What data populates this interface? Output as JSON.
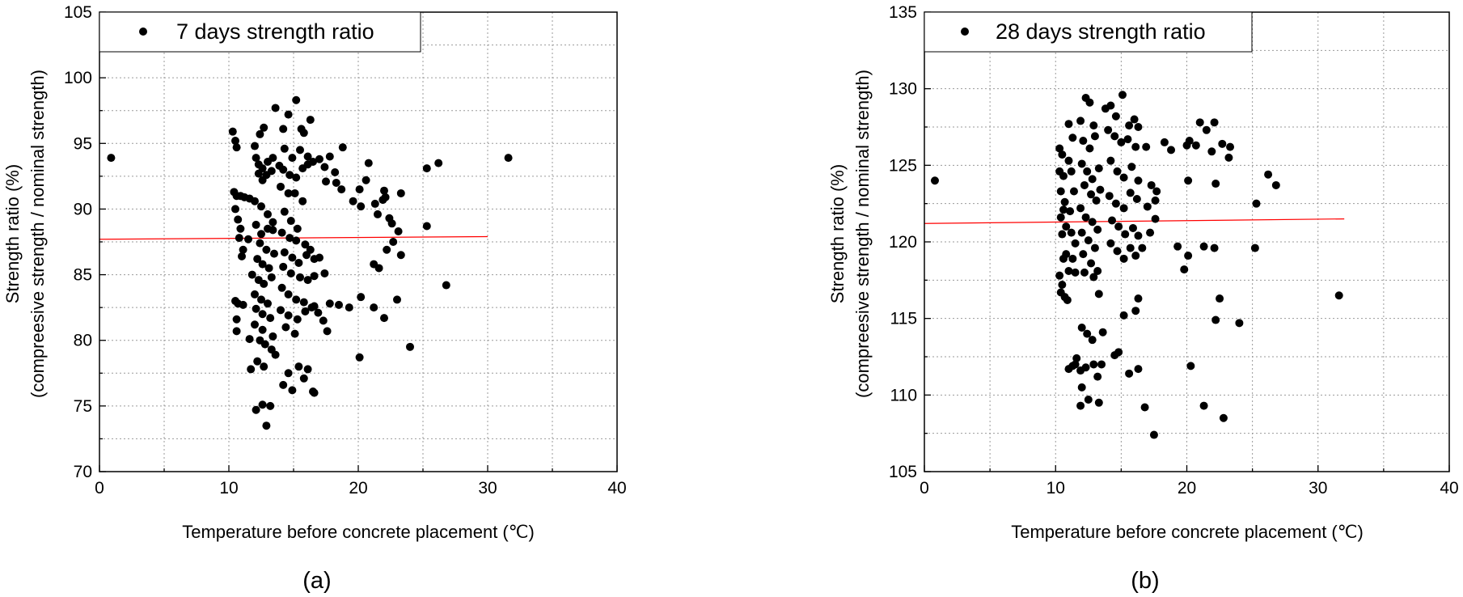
{
  "chart_data": [
    {
      "panel_label": "(a)",
      "type": "scatter",
      "legend": "7 days strength ratio",
      "legend_position": "top-left",
      "xlabel": "Temperature before concrete placement (℃)",
      "ylabel_line1": "Strength ratio (%)",
      "ylabel_line2": "(compreesive strength / nominal strength)",
      "xlim": [
        0,
        40
      ],
      "ylim": [
        70,
        105
      ],
      "xticks": [
        0,
        10,
        20,
        30,
        40
      ],
      "yticks": [
        70,
        75,
        80,
        85,
        90,
        95,
        100,
        105
      ],
      "grid": true,
      "trendline": {
        "color": "#ff0000",
        "x": [
          0,
          30
        ],
        "y": [
          87.7,
          87.9
        ]
      },
      "marker_color": "#000000",
      "points": [
        [
          0.9,
          93.9
        ],
        [
          31.6,
          93.9
        ],
        [
          26.2,
          93.5
        ],
        [
          25.3,
          93.1
        ],
        [
          25.3,
          88.7
        ],
        [
          26.8,
          84.2
        ],
        [
          24.0,
          79.5
        ],
        [
          10.3,
          95.9
        ],
        [
          10.5,
          95.2
        ],
        [
          10.6,
          94.7
        ],
        [
          10.4,
          91.3
        ],
        [
          10.6,
          91.0
        ],
        [
          10.9,
          91.0
        ],
        [
          11.2,
          90.9
        ],
        [
          11.6,
          90.8
        ],
        [
          10.5,
          90.0
        ],
        [
          10.7,
          89.2
        ],
        [
          10.9,
          88.5
        ],
        [
          10.8,
          87.8
        ],
        [
          11.5,
          87.7
        ],
        [
          11.1,
          86.9
        ],
        [
          11.0,
          86.4
        ],
        [
          10.5,
          83.0
        ],
        [
          10.7,
          82.8
        ],
        [
          11.1,
          82.7
        ],
        [
          10.6,
          81.6
        ],
        [
          10.6,
          80.7
        ],
        [
          11.6,
          80.1
        ],
        [
          11.7,
          77.8
        ],
        [
          12.0,
          94.8
        ],
        [
          12.4,
          95.7
        ],
        [
          12.7,
          96.2
        ],
        [
          12.1,
          93.9
        ],
        [
          12.3,
          93.4
        ],
        [
          12.6,
          93.1
        ],
        [
          13.0,
          93.6
        ],
        [
          13.4,
          93.9
        ],
        [
          12.3,
          92.7
        ],
        [
          12.6,
          92.2
        ],
        [
          12.9,
          92.6
        ],
        [
          13.3,
          92.9
        ],
        [
          13.9,
          93.3
        ],
        [
          12.0,
          90.6
        ],
        [
          12.5,
          90.2
        ],
        [
          13.0,
          89.6
        ],
        [
          13.4,
          89.0
        ],
        [
          12.1,
          88.8
        ],
        [
          12.5,
          88.1
        ],
        [
          13.0,
          88.5
        ],
        [
          13.4,
          88.4
        ],
        [
          12.4,
          87.4
        ],
        [
          12.9,
          86.9
        ],
        [
          13.5,
          86.6
        ],
        [
          12.2,
          86.2
        ],
        [
          12.6,
          85.8
        ],
        [
          13.1,
          85.5
        ],
        [
          11.8,
          85.0
        ],
        [
          12.3,
          84.6
        ],
        [
          12.7,
          84.3
        ],
        [
          13.3,
          84.8
        ],
        [
          12.0,
          83.5
        ],
        [
          12.5,
          83.1
        ],
        [
          13.0,
          82.8
        ],
        [
          12.1,
          82.4
        ],
        [
          12.6,
          82.0
        ],
        [
          13.2,
          81.7
        ],
        [
          12.0,
          81.2
        ],
        [
          12.6,
          80.8
        ],
        [
          13.4,
          80.3
        ],
        [
          12.4,
          80.0
        ],
        [
          12.8,
          79.7
        ],
        [
          13.3,
          79.3
        ],
        [
          12.2,
          78.4
        ],
        [
          12.7,
          78.0
        ],
        [
          13.6,
          78.9
        ],
        [
          12.1,
          74.7
        ],
        [
          12.6,
          75.1
        ],
        [
          13.2,
          75.0
        ],
        [
          12.9,
          73.5
        ],
        [
          13.6,
          97.7
        ],
        [
          14.2,
          96.1
        ],
        [
          14.6,
          97.2
        ],
        [
          15.2,
          98.3
        ],
        [
          15.6,
          96.1
        ],
        [
          15.8,
          95.8
        ],
        [
          16.3,
          96.8
        ],
        [
          14.3,
          94.6
        ],
        [
          14.9,
          93.9
        ],
        [
          15.5,
          94.5
        ],
        [
          16.1,
          94.0
        ],
        [
          16.5,
          93.6
        ],
        [
          14.2,
          93.0
        ],
        [
          14.7,
          92.6
        ],
        [
          15.2,
          92.4
        ],
        [
          15.7,
          93.1
        ],
        [
          16.1,
          93.4
        ],
        [
          14.0,
          91.7
        ],
        [
          14.6,
          91.2
        ],
        [
          15.1,
          91.2
        ],
        [
          15.7,
          90.6
        ],
        [
          14.3,
          89.8
        ],
        [
          14.8,
          89.1
        ],
        [
          15.3,
          88.5
        ],
        [
          14.1,
          88.2
        ],
        [
          14.7,
          87.8
        ],
        [
          15.2,
          87.6
        ],
        [
          15.9,
          87.3
        ],
        [
          16.3,
          86.9
        ],
        [
          14.3,
          86.7
        ],
        [
          14.9,
          86.3
        ],
        [
          15.4,
          85.9
        ],
        [
          16.0,
          86.5
        ],
        [
          16.6,
          86.2
        ],
        [
          14.2,
          85.6
        ],
        [
          14.8,
          85.1
        ],
        [
          15.5,
          84.8
        ],
        [
          16.1,
          84.6
        ],
        [
          16.6,
          84.9
        ],
        [
          14.1,
          84.0
        ],
        [
          14.6,
          83.5
        ],
        [
          15.2,
          83.1
        ],
        [
          15.8,
          82.9
        ],
        [
          16.4,
          82.5
        ],
        [
          14.0,
          82.3
        ],
        [
          14.6,
          81.9
        ],
        [
          15.3,
          81.6
        ],
        [
          15.9,
          82.2
        ],
        [
          16.6,
          82.6
        ],
        [
          14.4,
          81.0
        ],
        [
          15.1,
          80.5
        ],
        [
          14.6,
          77.5
        ],
        [
          15.4,
          78.0
        ],
        [
          16.1,
          77.8
        ],
        [
          14.2,
          76.6
        ],
        [
          14.9,
          76.2
        ],
        [
          16.5,
          76.1
        ],
        [
          15.8,
          77.1
        ],
        [
          16.6,
          76.0
        ],
        [
          17.0,
          93.8
        ],
        [
          17.5,
          92.1
        ],
        [
          17.8,
          94.0
        ],
        [
          17.4,
          93.2
        ],
        [
          18.2,
          92.8
        ],
        [
          18.8,
          94.7
        ],
        [
          18.3,
          92.0
        ],
        [
          18.7,
          91.5
        ],
        [
          17.0,
          86.3
        ],
        [
          17.4,
          85.1
        ],
        [
          16.9,
          82.1
        ],
        [
          17.3,
          81.5
        ],
        [
          17.8,
          82.8
        ],
        [
          17.6,
          80.7
        ],
        [
          18.5,
          82.7
        ],
        [
          19.3,
          82.5
        ],
        [
          19.6,
          90.6
        ],
        [
          20.1,
          91.5
        ],
        [
          20.2,
          90.2
        ],
        [
          20.6,
          92.2
        ],
        [
          20.8,
          93.5
        ],
        [
          21.3,
          90.4
        ],
        [
          21.5,
          89.6
        ],
        [
          21.9,
          90.7
        ],
        [
          22.1,
          90.9
        ],
        [
          22.0,
          91.4
        ],
        [
          22.4,
          89.3
        ],
        [
          22.6,
          88.9
        ],
        [
          23.1,
          88.3
        ],
        [
          23.3,
          91.2
        ],
        [
          23.3,
          86.5
        ],
        [
          20.2,
          83.3
        ],
        [
          21.2,
          85.8
        ],
        [
          21.6,
          85.5
        ],
        [
          21.2,
          82.5
        ],
        [
          22.0,
          81.7
        ],
        [
          22.2,
          86.9
        ],
        [
          22.7,
          87.5
        ],
        [
          23.0,
          83.1
        ],
        [
          20.1,
          78.7
        ]
      ]
    },
    {
      "panel_label": "(b)",
      "type": "scatter",
      "legend": "28 days strength ratio",
      "legend_position": "top-left",
      "xlabel": "Temperature before concrete placement (℃)",
      "ylabel_line1": "Strength ratio (%)",
      "ylabel_line2": "(compreesive strength / nominal strength)",
      "xlim": [
        0,
        40
      ],
      "ylim": [
        105,
        135
      ],
      "xticks": [
        0,
        10,
        20,
        30,
        40
      ],
      "yticks": [
        105,
        110,
        115,
        120,
        125,
        130,
        135
      ],
      "grid": true,
      "trendline": {
        "color": "#ff0000",
        "x": [
          0,
          32
        ],
        "y": [
          121.2,
          121.5
        ]
      },
      "marker_color": "#000000",
      "points": [
        [
          0.8,
          124.0
        ],
        [
          31.6,
          116.5
        ],
        [
          26.2,
          124.4
        ],
        [
          26.8,
          123.7
        ],
        [
          25.3,
          122.5
        ],
        [
          25.2,
          119.6
        ],
        [
          24.0,
          114.7
        ],
        [
          10.3,
          126.1
        ],
        [
          10.5,
          125.7
        ],
        [
          10.3,
          124.6
        ],
        [
          10.6,
          124.3
        ],
        [
          10.4,
          123.3
        ],
        [
          10.7,
          122.6
        ],
        [
          10.6,
          122.1
        ],
        [
          10.4,
          121.6
        ],
        [
          10.8,
          121.0
        ],
        [
          10.5,
          120.5
        ],
        [
          10.8,
          119.2
        ],
        [
          10.6,
          118.9
        ],
        [
          10.3,
          117.8
        ],
        [
          10.5,
          117.2
        ],
        [
          10.4,
          116.7
        ],
        [
          10.7,
          116.4
        ],
        [
          10.9,
          116.2
        ],
        [
          11.0,
          127.7
        ],
        [
          11.3,
          126.8
        ],
        [
          11.0,
          125.3
        ],
        [
          11.2,
          124.6
        ],
        [
          11.4,
          123.3
        ],
        [
          11.1,
          122.0
        ],
        [
          11.2,
          120.6
        ],
        [
          11.5,
          119.9
        ],
        [
          11.3,
          118.9
        ],
        [
          11.0,
          118.1
        ],
        [
          11.5,
          118.0
        ],
        [
          11.0,
          111.7
        ],
        [
          11.3,
          111.9
        ],
        [
          11.6,
          112.4
        ],
        [
          11.5,
          112.0
        ],
        [
          11.9,
          127.9
        ],
        [
          12.3,
          129.4
        ],
        [
          12.6,
          129.1
        ],
        [
          12.9,
          127.6
        ],
        [
          12.1,
          126.6
        ],
        [
          12.6,
          126.1
        ],
        [
          13.0,
          126.9
        ],
        [
          12.0,
          125.1
        ],
        [
          12.4,
          124.6
        ],
        [
          12.8,
          124.1
        ],
        [
          13.3,
          124.8
        ],
        [
          12.2,
          123.7
        ],
        [
          12.7,
          123.1
        ],
        [
          13.1,
          122.7
        ],
        [
          13.4,
          123.4
        ],
        [
          11.9,
          122.2
        ],
        [
          12.3,
          121.6
        ],
        [
          12.8,
          121.3
        ],
        [
          13.2,
          120.8
        ],
        [
          12.0,
          120.6
        ],
        [
          12.5,
          120.1
        ],
        [
          13.0,
          119.6
        ],
        [
          12.1,
          119.2
        ],
        [
          12.7,
          118.6
        ],
        [
          13.2,
          118.1
        ],
        [
          12.2,
          118.0
        ],
        [
          12.9,
          117.7
        ],
        [
          13.3,
          116.6
        ],
        [
          12.0,
          114.4
        ],
        [
          12.4,
          114.0
        ],
        [
          12.8,
          113.6
        ],
        [
          11.9,
          111.6
        ],
        [
          12.3,
          111.8
        ],
        [
          12.9,
          112.0
        ],
        [
          13.2,
          111.2
        ],
        [
          12.0,
          110.5
        ],
        [
          11.9,
          109.3
        ],
        [
          12.5,
          109.7
        ],
        [
          13.3,
          109.5
        ],
        [
          13.6,
          114.1
        ],
        [
          13.5,
          112.0
        ],
        [
          13.8,
          128.7
        ],
        [
          14.2,
          128.9
        ],
        [
          14.6,
          128.2
        ],
        [
          15.1,
          129.6
        ],
        [
          15.6,
          127.6
        ],
        [
          16.0,
          128.0
        ],
        [
          16.3,
          127.5
        ],
        [
          14.0,
          127.3
        ],
        [
          14.5,
          126.9
        ],
        [
          15.0,
          126.5
        ],
        [
          15.5,
          126.7
        ],
        [
          16.1,
          126.2
        ],
        [
          14.2,
          125.3
        ],
        [
          14.7,
          124.6
        ],
        [
          15.2,
          124.2
        ],
        [
          15.8,
          124.9
        ],
        [
          16.3,
          124.0
        ],
        [
          14.1,
          123.0
        ],
        [
          14.6,
          122.5
        ],
        [
          15.2,
          122.2
        ],
        [
          15.7,
          123.2
        ],
        [
          16.2,
          122.8
        ],
        [
          14.3,
          121.4
        ],
        [
          14.8,
          121.0
        ],
        [
          15.3,
          120.5
        ],
        [
          15.9,
          120.9
        ],
        [
          16.3,
          120.4
        ],
        [
          14.2,
          119.9
        ],
        [
          14.7,
          119.4
        ],
        [
          15.2,
          118.9
        ],
        [
          15.7,
          119.6
        ],
        [
          16.1,
          119.1
        ],
        [
          16.6,
          119.6
        ],
        [
          14.8,
          112.8
        ],
        [
          14.5,
          112.6
        ],
        [
          15.6,
          111.4
        ],
        [
          16.3,
          111.7
        ],
        [
          15.2,
          115.2
        ],
        [
          16.1,
          115.5
        ],
        [
          16.3,
          116.3
        ],
        [
          16.9,
          126.2
        ],
        [
          17.3,
          123.7
        ],
        [
          17.6,
          122.7
        ],
        [
          17.0,
          122.3
        ],
        [
          17.6,
          121.5
        ],
        [
          17.2,
          120.6
        ],
        [
          17.7,
          123.3
        ],
        [
          16.8,
          109.2
        ],
        [
          17.5,
          107.4
        ],
        [
          18.3,
          126.5
        ],
        [
          18.8,
          126.0
        ],
        [
          19.3,
          119.7
        ],
        [
          19.8,
          118.2
        ],
        [
          20.0,
          126.3
        ],
        [
          20.2,
          126.6
        ],
        [
          20.7,
          126.3
        ],
        [
          20.1,
          124.0
        ],
        [
          20.1,
          119.1
        ],
        [
          20.3,
          111.9
        ],
        [
          21.0,
          127.8
        ],
        [
          21.5,
          127.3
        ],
        [
          21.9,
          125.9
        ],
        [
          22.1,
          127.8
        ],
        [
          22.2,
          123.8
        ],
        [
          22.7,
          126.4
        ],
        [
          23.3,
          126.2
        ],
        [
          23.2,
          125.5
        ],
        [
          21.3,
          119.7
        ],
        [
          22.1,
          119.6
        ],
        [
          22.2,
          114.9
        ],
        [
          22.5,
          116.3
        ],
        [
          21.3,
          109.3
        ],
        [
          22.8,
          108.5
        ]
      ]
    }
  ]
}
